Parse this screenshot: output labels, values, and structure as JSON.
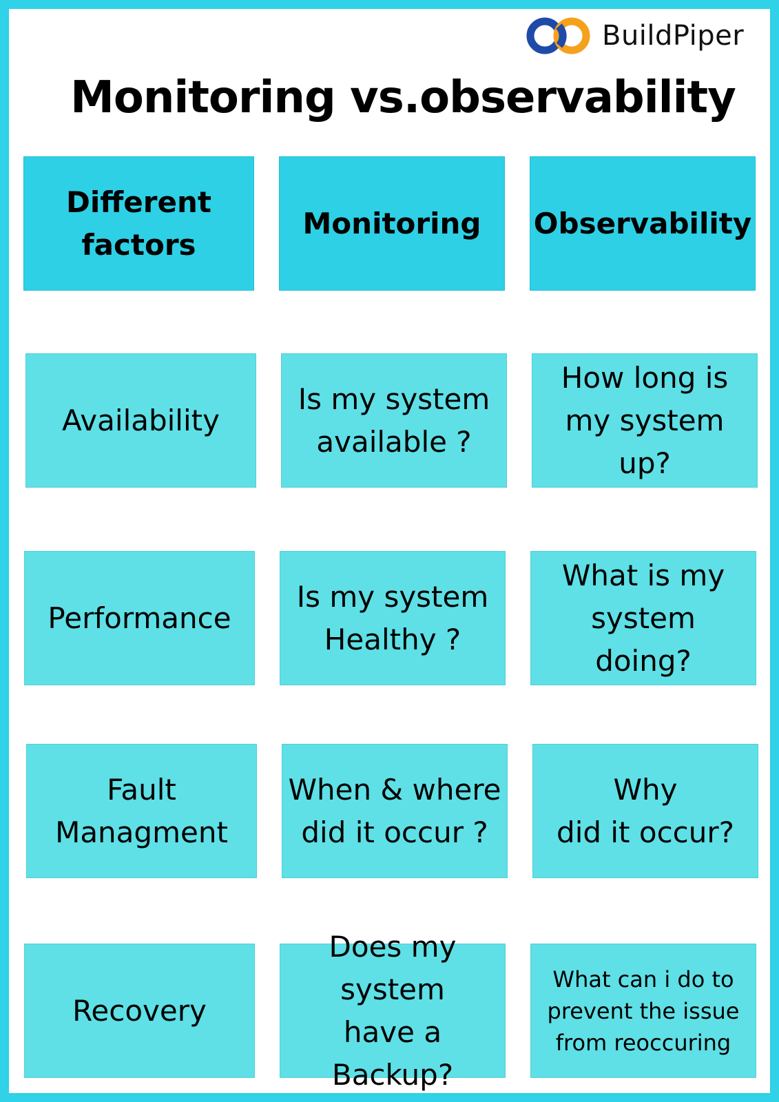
{
  "brand": {
    "name": "BuildPiper",
    "colors": {
      "logo_blue": "#1f4aa8",
      "logo_orange": "#f5a11d",
      "frame": "#2fd2e6",
      "header_cell": "#2ed0e5",
      "body_cell": "#5ee0e6"
    }
  },
  "title": "Monitoring vs.observability",
  "table": {
    "headers": [
      "Different\nfactors",
      "Monitoring",
      "Observability"
    ],
    "rows": [
      [
        "Availability",
        "Is my system\navailable ?",
        "How long is\nmy system\nup?"
      ],
      [
        "Performance",
        "Is my system\nHealthy ?",
        "What is my\nsystem\ndoing?"
      ],
      [
        "Fault\nManagment",
        "When & where\ndid it occur ?",
        "Why\ndid it occur?"
      ],
      [
        "Recovery",
        "Does my\nsystem\nhave a Backup?",
        "What can i do  to\nprevent the issue\nfrom reoccuring"
      ]
    ]
  }
}
